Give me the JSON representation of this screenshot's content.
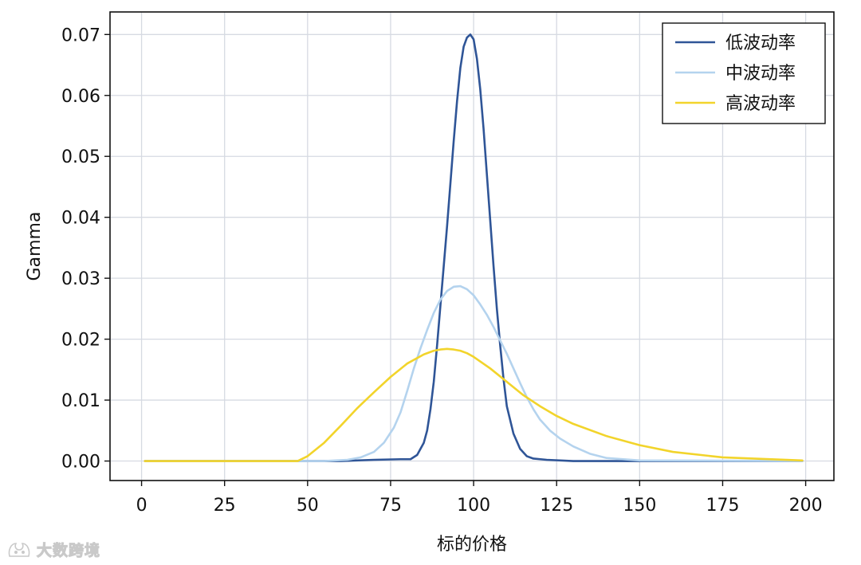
{
  "chart_data": {
    "type": "line",
    "title": "",
    "xlabel": "标的价格",
    "ylabel": "Gamma",
    "xlim": [
      -9.5,
      208.5
    ],
    "ylim": [
      -0.0032,
      0.0737
    ],
    "xticks": [
      0,
      25,
      50,
      75,
      100,
      125,
      150,
      175,
      200
    ],
    "yticks": [
      0.0,
      0.01,
      0.02,
      0.03,
      0.04,
      0.05,
      0.06,
      0.07
    ],
    "ytick_labels": [
      "0.00",
      "0.01",
      "0.02",
      "0.03",
      "0.04",
      "0.05",
      "0.06",
      "0.07"
    ],
    "grid": true,
    "legend_position": "top-right",
    "series": [
      {
        "name": "低波动率",
        "color": "#2f5597",
        "x": [
          1,
          60,
          70,
          78,
          81,
          83,
          85,
          86,
          87,
          88,
          89,
          90,
          91,
          92,
          93,
          94,
          95,
          96,
          97,
          98,
          99,
          100,
          101,
          102,
          103,
          104,
          105,
          106,
          107,
          108,
          109,
          110,
          112,
          114,
          116,
          118,
          122,
          130,
          140,
          199
        ],
        "y": [
          0.0,
          0.0,
          0.0002,
          0.0003,
          0.0003,
          0.001,
          0.003,
          0.005,
          0.0085,
          0.013,
          0.019,
          0.0255,
          0.032,
          0.0385,
          0.0455,
          0.0525,
          0.059,
          0.0645,
          0.068,
          0.0695,
          0.07,
          0.0692,
          0.066,
          0.061,
          0.0545,
          0.047,
          0.0395,
          0.032,
          0.025,
          0.019,
          0.0135,
          0.009,
          0.0045,
          0.002,
          0.0008,
          0.0004,
          0.0002,
          0.0,
          0.0,
          0.0
        ]
      },
      {
        "name": "中波动率",
        "color": "#b4d3ee",
        "x": [
          1,
          55,
          62,
          66,
          70,
          73,
          76,
          78,
          80,
          82,
          84,
          86,
          88,
          90,
          92,
          94,
          96,
          98,
          100,
          102,
          104,
          106,
          108,
          110,
          112,
          114,
          116,
          118,
          120,
          123,
          126,
          130,
          135,
          140,
          150,
          199
        ],
        "y": [
          0.0,
          0.0,
          0.0002,
          0.0006,
          0.0015,
          0.003,
          0.0055,
          0.008,
          0.0115,
          0.0152,
          0.0185,
          0.0215,
          0.0243,
          0.0265,
          0.0279,
          0.0286,
          0.0287,
          0.0282,
          0.0272,
          0.0257,
          0.024,
          0.022,
          0.0198,
          0.0176,
          0.0152,
          0.0128,
          0.0105,
          0.0085,
          0.0068,
          0.005,
          0.0037,
          0.0024,
          0.0012,
          0.0005,
          0.0001,
          0.0
        ]
      },
      {
        "name": "高波动率",
        "color": "#f2d42b",
        "x": [
          1,
          47,
          50,
          55,
          60,
          65,
          70,
          75,
          80,
          85,
          88,
          90,
          92,
          94,
          96,
          98,
          100,
          105,
          110,
          115,
          120,
          125,
          130,
          140,
          150,
          160,
          175,
          199
        ],
        "y": [
          0.0,
          0.0,
          0.0008,
          0.003,
          0.0058,
          0.0087,
          0.0113,
          0.0138,
          0.016,
          0.0175,
          0.0181,
          0.0183,
          0.0184,
          0.0183,
          0.0181,
          0.0177,
          0.0171,
          0.0152,
          0.013,
          0.0108,
          0.009,
          0.0074,
          0.0061,
          0.0041,
          0.0026,
          0.0015,
          0.0006,
          0.0001
        ]
      }
    ]
  },
  "watermark": {
    "icon": "fox-logo-icon",
    "text": "大数跨境"
  }
}
